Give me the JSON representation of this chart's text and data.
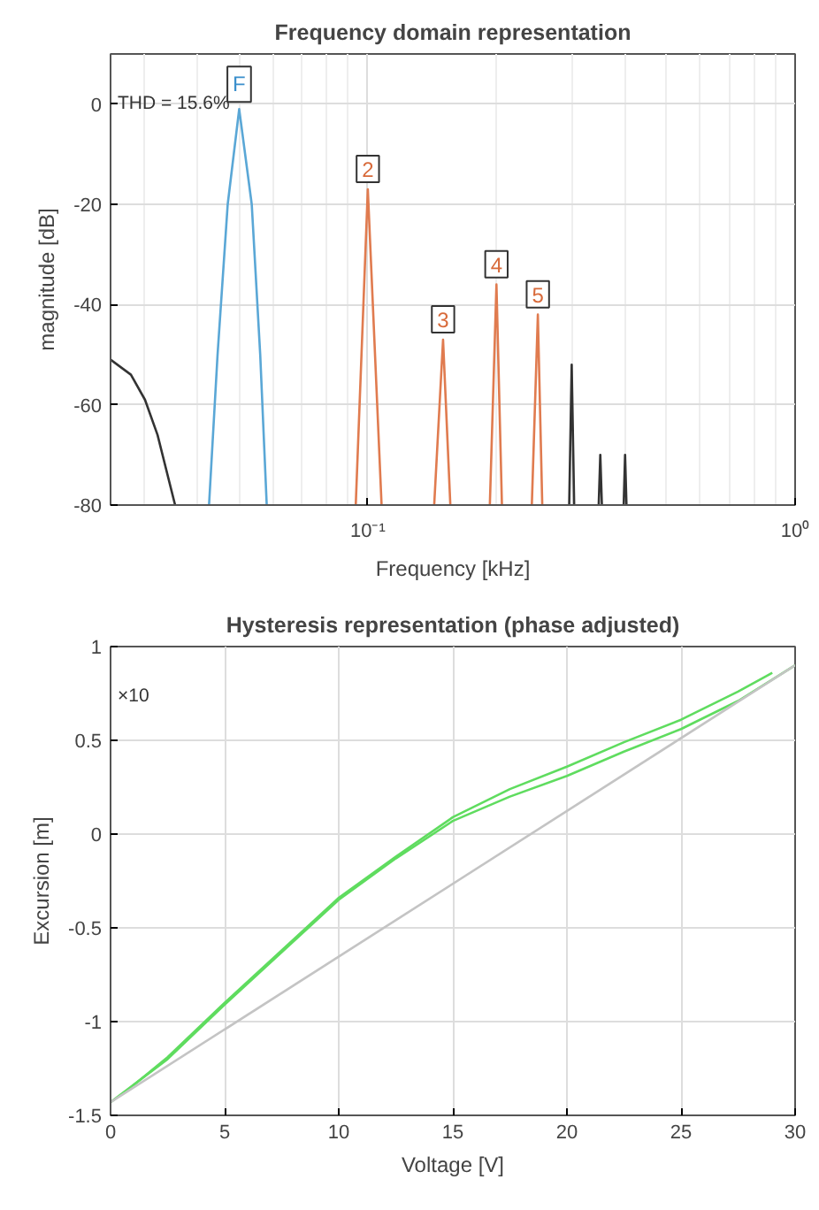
{
  "chart_data": [
    {
      "type": "line",
      "title": "Frequency domain representation",
      "xlabel": "Frequency [kHz]",
      "ylabel": "magnitude [dB]",
      "log": "x",
      "grid": true,
      "xlim": [
        0.025,
        1
      ],
      "xticks": [
        {
          "value": 0.1,
          "label": "10⁻¹"
        },
        {
          "value": 1,
          "label": "10⁰"
        }
      ],
      "ylim": [
        -80,
        10
      ],
      "yticks": [
        -80,
        -60,
        -40,
        -20,
        0
      ],
      "series": [
        {
          "color": "#5aa7d6",
          "x": [
            0.0425,
            0.0445,
            0.047,
            0.05,
            0.0535,
            0.056,
            0.058
          ],
          "values": [
            -80,
            -50,
            -20,
            -1,
            -20,
            -50,
            -80
          ]
        },
        {
          "color": "#e07b4f",
          "x": [
            0.0937,
            0.1,
            0.1077
          ],
          "values": [
            -80,
            -17,
            -80
          ]
        },
        {
          "color": "#e07b4f",
          "x": [
            0.143,
            0.15,
            0.156
          ],
          "values": [
            -80,
            -47,
            -80
          ]
        },
        {
          "color": "#e07b4f",
          "x": [
            0.193,
            0.2,
            0.206
          ],
          "values": [
            -80,
            -36,
            -80
          ]
        },
        {
          "color": "#e07b4f",
          "x": [
            0.242,
            0.25,
            0.256
          ],
          "values": [
            -80,
            -42,
            -80
          ]
        },
        {
          "color": "#333333",
          "x": [
            0.025,
            0.0279,
            0.0301,
            0.0322,
            0.0354
          ],
          "values": [
            -51,
            -54,
            -59,
            -66,
            -80
          ]
        },
        {
          "color": "#333333",
          "x": [
            0.296,
            0.3,
            0.304
          ],
          "values": [
            -80,
            -52,
            -80
          ]
        },
        {
          "color": "#333333",
          "x": [
            0.347,
            0.35,
            0.353
          ],
          "values": [
            -80,
            -70,
            -80
          ]
        },
        {
          "color": "#333333",
          "x": [
            0.397,
            0.4,
            0.403
          ],
          "values": [
            -80,
            -70,
            -80
          ]
        }
      ],
      "annotations": [
        "THD = 15.6%",
        {
          "text": "F",
          "x": 0.05,
          "y": -1
        },
        {
          "text": "2",
          "x": 0.1,
          "y": -17
        },
        {
          "text": "3",
          "x": 0.15,
          "y": -47
        },
        {
          "text": "4",
          "x": 0.2,
          "y": -36
        },
        {
          "text": "5",
          "x": 0.25,
          "y": -42
        }
      ]
    },
    {
      "type": "line",
      "title": "Hysteresis representation (phase adjusted)",
      "xlabel": "Voltage [V]",
      "ylabel": "Excursion [m]",
      "grid": true,
      "xlim": [
        0,
        30
      ],
      "xticks": [
        0,
        5,
        10,
        15,
        20,
        25,
        30
      ],
      "ylim": [
        -1.5,
        1
      ],
      "yticks": [
        -1.5,
        -1,
        -0.5,
        0,
        0.5,
        1
      ],
      "series": [
        {
          "color": "#5fdc5f",
          "x": [
            0,
            2.5,
            5,
            7.5,
            10,
            12.5,
            15,
            17.5,
            20,
            22.5,
            25,
            27.5,
            30
          ],
          "values": [
            -1.43,
            -1.2,
            -0.91,
            -0.63,
            -0.35,
            -0.13,
            0.07,
            0.2,
            0.31,
            0.44,
            0.56,
            0.71,
            0.9
          ]
        },
        {
          "color": "#5fdc5f",
          "x": [
            1,
            2.5,
            5,
            7.5,
            10,
            12.5,
            15,
            17.5,
            20,
            22.5,
            25,
            27.5,
            29
          ],
          "values": [
            -1.34,
            -1.19,
            -0.9,
            -0.62,
            -0.34,
            -0.12,
            0.09,
            0.24,
            0.36,
            0.49,
            0.61,
            0.76,
            0.86
          ]
        },
        {
          "color": "#c4c4c4",
          "x": [
            0,
            30
          ],
          "values": [
            -1.43,
            0.9
          ]
        }
      ],
      "annotations": [
        "×10"
      ]
    }
  ]
}
